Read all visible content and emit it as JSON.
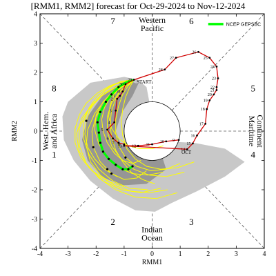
{
  "chart_data": {
    "type": "scatter",
    "title": "[RMM1, RMM2] forecast for Oct-29-2024 to Nov-12-2024",
    "xlabel": "RMM1",
    "ylabel": "RMM2",
    "xlim": [
      -4,
      4
    ],
    "ylim": [
      -4,
      4
    ],
    "xticks": [
      "-4",
      "-3",
      "-2",
      "-1",
      "0",
      "1",
      "2",
      "3",
      "4"
    ],
    "yticks": [
      "-4",
      "-3",
      "-2",
      "-1",
      "0",
      "1",
      "2",
      "3",
      "4"
    ],
    "grid": false,
    "unit_circle_radius": 1,
    "regions": {
      "top": [
        "Western",
        "Pacific"
      ],
      "bottom": [
        "Indian",
        "Ocean"
      ],
      "left": [
        "West. Hem.",
        "and Africa"
      ],
      "right": [
        "Maritime",
        "Continent"
      ]
    },
    "phases": [
      {
        "label": "1",
        "x": -3.5,
        "y": -0.9
      },
      {
        "label": "2",
        "x": -1.4,
        "y": -3.2
      },
      {
        "label": "3",
        "x": 1.4,
        "y": -3.2
      },
      {
        "label": "4",
        "x": 3.6,
        "y": -0.9
      },
      {
        "label": "5",
        "x": 3.6,
        "y": 1.35
      },
      {
        "label": "6",
        "x": 1.4,
        "y": 3.65
      },
      {
        "label": "7",
        "x": -1.4,
        "y": 3.65
      },
      {
        "label": "8",
        "x": -3.5,
        "y": 1.35
      }
    ],
    "legend": {
      "label": "NCEP GEPSBC",
      "position": "top-right"
    },
    "labels": {
      "start": "START",
      "oct": "OCT"
    },
    "colors": {
      "observed": "#d00000",
      "forecast_mean": "#00ff00",
      "members": "#ffff00",
      "envelope_outer": "#c8c8c8",
      "envelope_inner": "#969696",
      "start_label": "#4b0082",
      "oct_label": "#d00000"
    },
    "observed_path": [
      {
        "day": "9",
        "x": 0.95,
        "y": -0.3
      },
      {
        "day": "10",
        "x": 0.5,
        "y": -0.35
      },
      {
        "day": "11",
        "x": 0.0,
        "y": -0.45
      },
      {
        "day": "12",
        "x": -0.5,
        "y": -0.5
      },
      {
        "day": "13",
        "x": -1.0,
        "y": -0.5
      },
      {
        "day": "14",
        "x": 1.25,
        "y": -0.62
      },
      {
        "day": "15",
        "x": 1.45,
        "y": -0.42
      },
      {
        "day": "16",
        "x": 1.6,
        "y": -0.15
      },
      {
        "day": "17",
        "x": 1.9,
        "y": 0.25
      },
      {
        "day": "18",
        "x": 1.95,
        "y": 0.75
      },
      {
        "day": "19",
        "x": 2.05,
        "y": 1.05
      },
      {
        "day": "20",
        "x": 2.2,
        "y": 1.25
      },
      {
        "day": "21",
        "x": 2.3,
        "y": 1.4
      },
      {
        "day": "22",
        "x": 2.3,
        "y": 1.5
      },
      {
        "day": "23",
        "x": 2.35,
        "y": 1.8
      },
      {
        "day": "24",
        "x": 2.3,
        "y": 2.2
      },
      {
        "day": "25",
        "x": 2.05,
        "y": 2.5
      },
      {
        "day": "26",
        "x": 1.65,
        "y": 2.7
      },
      {
        "day": "27",
        "x": 0.85,
        "y": 2.5
      },
      {
        "day": "28",
        "x": 0.45,
        "y": 2.1
      },
      {
        "day": "29",
        "x": -0.65,
        "y": 1.75
      },
      {
        "day": "30",
        "x": -0.95,
        "y": 1.6
      },
      {
        "day": "31",
        "x": -1.05,
        "y": 1.35
      },
      {
        "day": "1",
        "x": -1.15,
        "y": 1.2
      },
      {
        "day": "2",
        "x": -1.25,
        "y": 1.1
      },
      {
        "day": "3",
        "x": -1.3,
        "y": 0.7
      },
      {
        "day": "4",
        "x": -1.35,
        "y": 0.3
      },
      {
        "day": "5",
        "x": -1.6,
        "y": 0.05
      },
      {
        "day": "6",
        "x": -1.4,
        "y": -0.25
      },
      {
        "day": "7",
        "x": -1.2,
        "y": -0.4
      },
      {
        "day": "8",
        "x": -1.0,
        "y": -0.45
      }
    ],
    "forecast_mean": [
      {
        "x": -0.65,
        "y": 1.75
      },
      {
        "x": -0.95,
        "y": 1.65
      },
      {
        "x": -1.2,
        "y": 1.5
      },
      {
        "x": -1.45,
        "y": 1.25
      },
      {
        "x": -1.65,
        "y": 1.0
      },
      {
        "x": -1.85,
        "y": 0.65
      },
      {
        "x": -1.95,
        "y": 0.3
      },
      {
        "x": -1.9,
        "y": -0.05
      },
      {
        "x": -1.85,
        "y": -0.4
      },
      {
        "x": -1.75,
        "y": -0.7
      },
      {
        "x": -1.55,
        "y": -0.95
      },
      {
        "x": -1.3,
        "y": -1.15
      },
      {
        "x": -1.05,
        "y": -1.3
      },
      {
        "x": -0.85,
        "y": -1.3
      },
      {
        "x": -0.7,
        "y": -1.2
      }
    ],
    "envelope_outer": [
      {
        "x": -1.0,
        "y": 1.85
      },
      {
        "x": -2.2,
        "y": 1.65
      },
      {
        "x": -3.0,
        "y": 1.0
      },
      {
        "x": -3.2,
        "y": 0.5
      },
      {
        "x": -3.15,
        "y": -0.3
      },
      {
        "x": -2.8,
        "y": -1.0
      },
      {
        "x": -2.2,
        "y": -1.7
      },
      {
        "x": -1.4,
        "y": -2.3
      },
      {
        "x": -0.6,
        "y": -2.7
      },
      {
        "x": 0.1,
        "y": -2.75
      },
      {
        "x": 0.7,
        "y": -2.45
      },
      {
        "x": 1.6,
        "y": -2.05
      },
      {
        "x": 2.6,
        "y": -1.55
      },
      {
        "x": 3.3,
        "y": -1.05
      },
      {
        "x": 2.6,
        "y": -0.6
      },
      {
        "x": 1.5,
        "y": -0.4
      },
      {
        "x": 0.5,
        "y": -0.35
      },
      {
        "x": -0.2,
        "y": -0.25
      },
      {
        "x": -0.6,
        "y": 0.0
      },
      {
        "x": -1.0,
        "y": 0.1
      },
      {
        "x": -0.45,
        "y": 0.55
      },
      {
        "x": -0.1,
        "y": 1.0
      },
      {
        "x": -0.2,
        "y": 1.5
      },
      {
        "x": -0.5,
        "y": 1.75
      }
    ],
    "envelope_inner": [
      {
        "x": -0.9,
        "y": 1.75
      },
      {
        "x": -1.7,
        "y": 1.3
      },
      {
        "x": -2.3,
        "y": 0.5
      },
      {
        "x": -2.5,
        "y": -0.3
      },
      {
        "x": -2.3,
        "y": -1.0
      },
      {
        "x": -1.8,
        "y": -1.55
      },
      {
        "x": -1.1,
        "y": -1.85
      },
      {
        "x": -0.2,
        "y": -1.8
      },
      {
        "x": 0.5,
        "y": -1.3
      },
      {
        "x": 0.25,
        "y": -0.55
      },
      {
        "x": -0.5,
        "y": -0.4
      },
      {
        "x": -1.1,
        "y": -0.5
      },
      {
        "x": -1.3,
        "y": 0.0
      },
      {
        "x": -1.1,
        "y": 0.6
      },
      {
        "x": -0.7,
        "y": 1.2
      },
      {
        "x": -0.5,
        "y": 1.6
      }
    ],
    "ensemble_members": [
      [
        [
          -0.65,
          1.75
        ],
        [
          -1.0,
          1.55
        ],
        [
          -1.35,
          1.3
        ],
        [
          -1.7,
          0.95
        ],
        [
          -2.0,
          0.5
        ],
        [
          -2.15,
          0.0
        ],
        [
          -2.1,
          -0.55
        ],
        [
          -1.85,
          -1.05
        ],
        [
          -1.45,
          -1.45
        ],
        [
          -1.0,
          -1.65
        ],
        [
          -0.55,
          -1.6
        ],
        [
          -0.2,
          -1.35
        ]
      ],
      [
        [
          -0.65,
          1.75
        ],
        [
          -0.95,
          1.6
        ],
        [
          -1.25,
          1.4
        ],
        [
          -1.5,
          1.15
        ],
        [
          -1.7,
          0.8
        ],
        [
          -1.8,
          0.4
        ],
        [
          -1.75,
          0.0
        ],
        [
          -1.6,
          -0.4
        ],
        [
          -1.35,
          -0.75
        ],
        [
          -1.05,
          -1.0
        ],
        [
          -0.7,
          -1.1
        ],
        [
          -0.4,
          -1.0
        ]
      ],
      [
        [
          -0.65,
          1.75
        ],
        [
          -1.1,
          1.6
        ],
        [
          -1.6,
          1.35
        ],
        [
          -2.1,
          0.95
        ],
        [
          -2.5,
          0.45
        ],
        [
          -2.7,
          -0.1
        ],
        [
          -2.6,
          -0.7
        ],
        [
          -2.25,
          -1.25
        ],
        [
          -1.75,
          -1.7
        ],
        [
          -1.1,
          -2.0
        ],
        [
          -0.4,
          -2.1
        ],
        [
          0.3,
          -1.95
        ]
      ],
      [
        [
          -0.65,
          1.75
        ],
        [
          -0.9,
          1.65
        ],
        [
          -1.15,
          1.5
        ],
        [
          -1.35,
          1.25
        ],
        [
          -1.5,
          0.9
        ],
        [
          -1.55,
          0.5
        ],
        [
          -1.45,
          0.1
        ],
        [
          -1.2,
          -0.25
        ],
        [
          -0.85,
          -0.5
        ],
        [
          -0.45,
          -0.6
        ],
        [
          0.0,
          -0.6
        ],
        [
          0.4,
          -0.5
        ]
      ],
      [
        [
          -0.65,
          1.75
        ],
        [
          -1.05,
          1.7
        ],
        [
          -1.5,
          1.55
        ],
        [
          -1.95,
          1.3
        ],
        [
          -2.35,
          0.95
        ],
        [
          -2.6,
          0.55
        ],
        [
          -2.75,
          0.1
        ],
        [
          -2.75,
          -0.4
        ],
        [
          -2.55,
          -0.9
        ],
        [
          -2.15,
          -1.35
        ],
        [
          -1.6,
          -1.7
        ],
        [
          -1.0,
          -1.9
        ]
      ],
      [
        [
          -0.65,
          1.75
        ],
        [
          -0.85,
          1.55
        ],
        [
          -1.05,
          1.25
        ],
        [
          -1.2,
          0.85
        ],
        [
          -1.3,
          0.4
        ],
        [
          -1.3,
          -0.05
        ],
        [
          -1.2,
          -0.5
        ],
        [
          -0.95,
          -0.9
        ],
        [
          -0.55,
          -1.2
        ],
        [
          -0.05,
          -1.35
        ],
        [
          0.5,
          -1.3
        ],
        [
          1.0,
          -1.1
        ]
      ],
      [
        [
          -0.65,
          1.75
        ],
        [
          -1.2,
          1.55
        ],
        [
          -1.8,
          1.2
        ],
        [
          -2.3,
          0.7
        ],
        [
          -2.6,
          0.1
        ],
        [
          -2.6,
          -0.5
        ],
        [
          -2.35,
          -1.1
        ],
        [
          -1.9,
          -1.6
        ],
        [
          -1.3,
          -2.0
        ],
        [
          -0.6,
          -2.25
        ],
        [
          0.15,
          -2.3
        ],
        [
          0.9,
          -2.1
        ]
      ],
      [
        [
          -0.65,
          1.75
        ],
        [
          -0.95,
          1.7
        ],
        [
          -1.3,
          1.6
        ],
        [
          -1.65,
          1.4
        ],
        [
          -1.95,
          1.1
        ],
        [
          -2.2,
          0.75
        ],
        [
          -2.35,
          0.35
        ],
        [
          -2.4,
          -0.1
        ],
        [
          -2.3,
          -0.55
        ],
        [
          -2.05,
          -0.95
        ],
        [
          -1.7,
          -1.3
        ],
        [
          -1.25,
          -1.55
        ]
      ],
      [
        [
          -0.65,
          1.75
        ],
        [
          -0.8,
          1.5
        ],
        [
          -0.95,
          1.15
        ],
        [
          -1.05,
          0.75
        ],
        [
          -1.1,
          0.3
        ],
        [
          -1.05,
          -0.15
        ],
        [
          -0.9,
          -0.6
        ],
        [
          -0.6,
          -0.95
        ],
        [
          -0.2,
          -1.2
        ],
        [
          0.3,
          -1.3
        ],
        [
          0.9,
          -1.25
        ],
        [
          1.5,
          -1.05
        ]
      ],
      [
        [
          -0.65,
          1.75
        ],
        [
          -1.15,
          1.5
        ],
        [
          -1.65,
          1.1
        ],
        [
          -2.05,
          0.6
        ],
        [
          -2.3,
          0.05
        ],
        [
          -2.35,
          -0.5
        ],
        [
          -2.2,
          -1.05
        ],
        [
          -1.85,
          -1.5
        ],
        [
          -1.35,
          -1.85
        ],
        [
          -0.75,
          -2.05
        ],
        [
          -0.1,
          -2.1
        ],
        [
          0.55,
          -2.0
        ]
      ],
      [
        [
          -0.65,
          1.75
        ],
        [
          -1.0,
          1.6
        ],
        [
          -1.4,
          1.35
        ],
        [
          -1.75,
          1.0
        ],
        [
          -2.0,
          0.55
        ],
        [
          -2.05,
          0.05
        ],
        [
          -1.9,
          -0.45
        ],
        [
          -1.6,
          -0.9
        ],
        [
          -1.2,
          -1.25
        ],
        [
          -0.7,
          -1.45
        ],
        [
          -0.15,
          -1.5
        ],
        [
          0.4,
          -1.4
        ]
      ],
      [
        [
          -0.65,
          1.75
        ],
        [
          -0.9,
          1.55
        ],
        [
          -1.2,
          1.3
        ],
        [
          -1.45,
          0.95
        ],
        [
          -1.6,
          0.5
        ],
        [
          -1.6,
          0.0
        ],
        [
          -1.45,
          -0.5
        ],
        [
          -1.1,
          -0.95
        ],
        [
          -0.65,
          -1.3
        ],
        [
          -0.1,
          -1.5
        ],
        [
          0.5,
          -1.55
        ],
        [
          1.15,
          -1.4
        ]
      ],
      [
        [
          -0.65,
          1.75
        ],
        [
          -1.1,
          1.7
        ],
        [
          -1.55,
          1.5
        ],
        [
          -1.95,
          1.2
        ],
        [
          -2.25,
          0.8
        ],
        [
          -2.45,
          0.3
        ],
        [
          -2.45,
          -0.25
        ],
        [
          -2.25,
          -0.8
        ],
        [
          -1.9,
          -1.3
        ],
        [
          -1.4,
          -1.7
        ],
        [
          -0.8,
          -1.95
        ],
        [
          -0.15,
          -2.0
        ]
      ],
      [
        [
          -0.65,
          1.75
        ],
        [
          -0.85,
          1.6
        ],
        [
          -1.1,
          1.4
        ],
        [
          -1.3,
          1.1
        ],
        [
          -1.45,
          0.7
        ],
        [
          -1.5,
          0.25
        ],
        [
          -1.45,
          -0.2
        ],
        [
          -1.3,
          -0.65
        ],
        [
          -1.05,
          -1.05
        ],
        [
          -0.75,
          -1.4
        ],
        [
          -0.35,
          -1.65
        ],
        [
          0.1,
          -1.8
        ]
      ]
    ],
    "ensemble_markers": [
      [
        -1.2,
        1.5
      ],
      [
        -1.45,
        1.25
      ],
      [
        -1.65,
        1.0
      ],
      [
        -1.85,
        0.65
      ],
      [
        -1.95,
        0.3
      ],
      [
        -1.9,
        -0.05
      ],
      [
        -1.85,
        -0.4
      ],
      [
        -1.75,
        -0.7
      ],
      [
        -1.55,
        -0.95
      ],
      [
        -1.3,
        -1.15
      ],
      [
        -1.05,
        -1.3
      ],
      [
        -0.85,
        -1.3
      ],
      [
        -0.7,
        -1.2
      ],
      [
        -2.1,
        -0.55
      ],
      [
        -1.45,
        -1.45
      ],
      [
        -2.35,
        0.35
      ],
      [
        -0.95,
        -0.9
      ],
      [
        -1.6,
        -1.3
      ]
    ]
  }
}
